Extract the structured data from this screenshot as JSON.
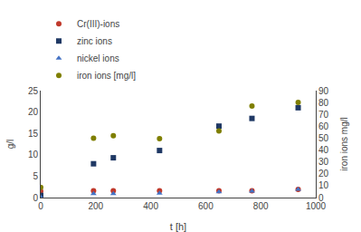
{
  "chart_data": {
    "type": "scatter",
    "xlabel": "t [h]",
    "ylabel": "g/l",
    "y2label": "iron ions mg/l",
    "x": [
      0,
      192,
      264,
      432,
      648,
      768,
      936
    ],
    "series": [
      {
        "name": "Cr(III)-ions",
        "color": "#c0392b",
        "marker": "circle",
        "values": [
          1.5,
          1.6,
          1.6,
          1.6,
          1.6,
          1.6,
          1.9
        ]
      },
      {
        "name": "zinc ions",
        "color": "#1f3864",
        "marker": "square",
        "values": [
          0.5,
          7.9,
          9.3,
          11.0,
          16.7,
          18.5,
          21.0
        ]
      },
      {
        "name": "nickel ions",
        "color": "#4472c4",
        "marker": "triangle-up",
        "values": [
          0.1,
          0.9,
          0.9,
          1.0,
          1.3,
          1.5,
          1.9
        ]
      },
      {
        "name": "iron ions [mg/l]",
        "color": "#7f7f00",
        "marker": "circle",
        "axis": "y2",
        "values": [
          8.5,
          50.0,
          52.0,
          49.5,
          56.0,
          77.0,
          80.0
        ]
      }
    ],
    "xlim": [
      0,
      1000
    ],
    "xticks": [
      0,
      200,
      400,
      600,
      800,
      1000
    ],
    "ylim": [
      0,
      25
    ],
    "yticks": [
      0,
      5,
      10,
      15,
      20,
      25
    ],
    "y2lim": [
      0,
      90
    ],
    "y2ticks": [
      0,
      10,
      20,
      30,
      40,
      50,
      60,
      70,
      80,
      90
    ],
    "grid": false,
    "legend": "upper left"
  }
}
